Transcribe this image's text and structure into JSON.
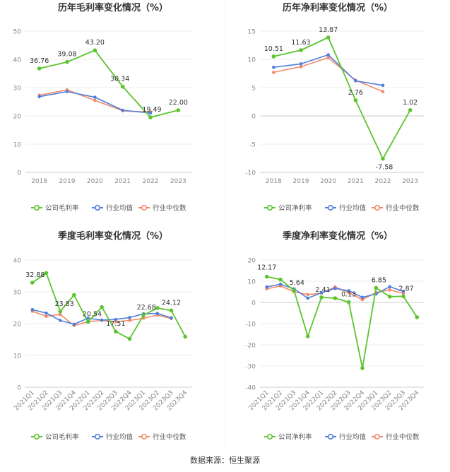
{
  "source_text": "数据来源：恒生聚源",
  "legend_labels": {
    "gross_company": "公司毛利率",
    "net_company": "公司净利率",
    "avg": "行业均值",
    "median": "行业中位数"
  },
  "colors": {
    "company": "#5bc42e",
    "avg": "#4f7fdb",
    "median": "#f08a6a"
  },
  "chart_data": [
    {
      "type": "line",
      "title": "历年毛利率变化情况（%）",
      "categories": [
        "2018",
        "2019",
        "2020",
        "2021",
        "2022",
        "2023"
      ],
      "ylim": [
        0,
        50
      ],
      "yticks": [
        0,
        10,
        20,
        30,
        40,
        50
      ],
      "series": [
        {
          "name": "公司毛利率",
          "values": [
            36.76,
            39.08,
            43.2,
            30.34,
            19.49,
            22.0
          ]
        },
        {
          "name": "行业均值",
          "values": [
            26.8,
            28.6,
            26.6,
            22.0,
            21.0,
            null
          ]
        },
        {
          "name": "行业中位数",
          "values": [
            27.3,
            29.2,
            25.5,
            21.8,
            21.3,
            null
          ]
        }
      ],
      "data_labels": [
        "36.76",
        "39.08",
        "43.20",
        "30.34",
        "19.49",
        "22.00"
      ]
    },
    {
      "type": "line",
      "title": "历年净利率变化情况（%）",
      "categories": [
        "2018",
        "2019",
        "2020",
        "2021",
        "2022",
        "2023"
      ],
      "ylim": [
        -10,
        15
      ],
      "yticks": [
        -10,
        -5,
        0,
        5,
        10,
        15
      ],
      "series": [
        {
          "name": "公司净利率",
          "values": [
            10.51,
            11.63,
            13.87,
            2.76,
            -7.58,
            1.02
          ]
        },
        {
          "name": "行业均值",
          "values": [
            8.6,
            9.2,
            10.8,
            6.2,
            5.4,
            null
          ]
        },
        {
          "name": "行业中位数",
          "values": [
            7.7,
            8.7,
            10.3,
            6.3,
            4.3,
            null
          ]
        }
      ],
      "data_labels": [
        "10.51",
        "11.63",
        "13.87",
        "2.76",
        "-7.58",
        "1.02"
      ]
    },
    {
      "type": "line",
      "title": "季度毛利率变化情况（%）",
      "categories": [
        "2021Q1",
        "2021Q2",
        "2021Q3",
        "2021Q4",
        "2022Q1",
        "2022Q2",
        "2022Q3",
        "2022Q4",
        "2023Q1",
        "2023Q2",
        "2023Q3",
        "2023Q4"
      ],
      "ylim": [
        0,
        40
      ],
      "yticks": [
        0,
        10,
        20,
        30,
        40
      ],
      "series": [
        {
          "name": "公司毛利率",
          "values": [
            32.88,
            35.9,
            23.83,
            29.0,
            20.54,
            25.2,
            17.51,
            15.2,
            22.68,
            24.9,
            24.12,
            15.9
          ]
        },
        {
          "name": "行业均值",
          "values": [
            24.4,
            23.3,
            21.0,
            19.8,
            21.7,
            21.1,
            21.3,
            21.9,
            23.1,
            23.2,
            21.8,
            null
          ]
        },
        {
          "name": "行业中位数",
          "values": [
            23.9,
            22.3,
            22.9,
            19.4,
            20.6,
            21.0,
            20.6,
            21.0,
            21.7,
            22.7,
            21.6,
            null
          ]
        }
      ],
      "data_labels": [
        "32.88",
        "",
        "23.83",
        "",
        "20.54",
        "",
        "17.51",
        "",
        "22.68",
        "",
        "24.12",
        ""
      ]
    },
    {
      "type": "line",
      "title": "季度净利率变化情况（%）",
      "categories": [
        "2021Q1",
        "2021Q2",
        "2021Q3",
        "2021Q4",
        "2022Q1",
        "2022Q2",
        "2022Q3",
        "2022Q4",
        "2023Q1",
        "2023Q2",
        "2023Q3",
        "2023Q4"
      ],
      "ylim": [
        -40,
        20
      ],
      "yticks": [
        -40,
        -30,
        -20,
        -10,
        0,
        10,
        20
      ],
      "series": [
        {
          "name": "公司净利率",
          "values": [
            12.17,
            10.8,
            5.64,
            -16.0,
            2.41,
            2.0,
            0.13,
            -31.0,
            6.85,
            2.7,
            2.87,
            -7.0
          ]
        },
        {
          "name": "行业均值",
          "values": [
            7.3,
            8.6,
            6.4,
            2.0,
            4.6,
            6.6,
            5.5,
            2.4,
            4.0,
            7.4,
            5.2,
            null
          ]
        },
        {
          "name": "行业中位数",
          "values": [
            6.4,
            7.8,
            5.0,
            3.7,
            4.4,
            7.3,
            4.6,
            1.3,
            4.7,
            5.9,
            4.3,
            null
          ]
        }
      ],
      "data_labels": [
        "12.17",
        "",
        "5.64",
        "",
        "2.41",
        "",
        "0.13",
        "",
        "6.85",
        "",
        "2.87",
        ""
      ]
    }
  ]
}
